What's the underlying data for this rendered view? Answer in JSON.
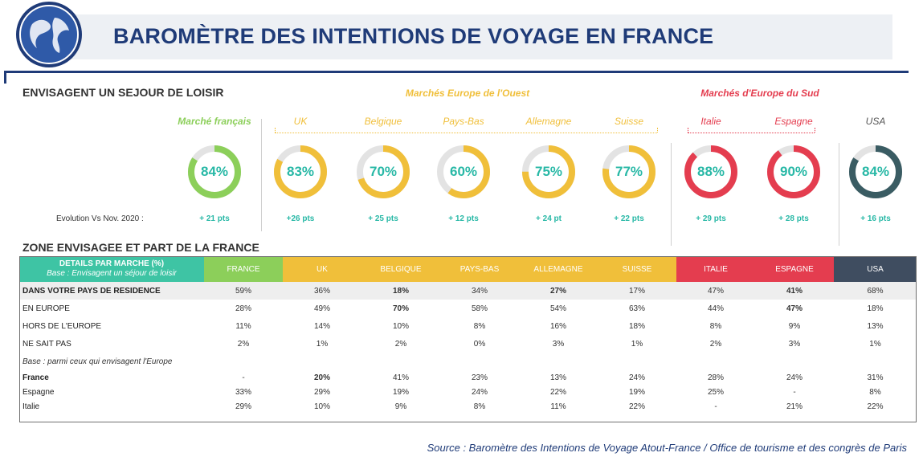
{
  "header": {
    "title": "BAROMÈTRE DES INTENTIONS DE VOYAGE EN FRANCE"
  },
  "section1_title": "ENVISAGENT UN SEJOUR DE LOISIR",
  "section2_title": "ZONE ENVISAGEE ET PART DE LA FRANCE",
  "groups": {
    "west": "Marchés Europe de l'Ouest",
    "south": "Marchés d'Europe du Sud"
  },
  "evolution_label": "Evolution Vs Nov. 2020 :",
  "colors": {
    "france": "#8ccf5a",
    "west": "#f0bf3a",
    "south": "#e43d4f",
    "usa": "#3a5c63",
    "header_navy": "#1f3b78",
    "accent_teal": "#28b8a6"
  },
  "chart_data": {
    "type": "donut",
    "markets": [
      {
        "name": "Marché français",
        "value": 84,
        "label": "84%",
        "evolution": "+ 21 pts",
        "color": "#8ccf5a",
        "label_color": "#8ccf5a"
      },
      {
        "name": "UK",
        "value": 83,
        "label": "83%",
        "evolution": "+26 pts",
        "color": "#f0bf3a",
        "label_color": "#f0bf3a"
      },
      {
        "name": "Belgique",
        "value": 70,
        "label": "70%",
        "evolution": "+ 25 pts",
        "color": "#f0bf3a",
        "label_color": "#f0bf3a"
      },
      {
        "name": "Pays-Bas",
        "value": 60,
        "label": "60%",
        "evolution": "+ 12 pts",
        "color": "#f0bf3a",
        "label_color": "#f0bf3a"
      },
      {
        "name": "Allemagne",
        "value": 75,
        "label": "75%",
        "evolution": "+ 24 pt",
        "color": "#f0bf3a",
        "label_color": "#f0bf3a"
      },
      {
        "name": "Suisse",
        "value": 77,
        "label": "77%",
        "evolution": "+ 22 pts",
        "color": "#f0bf3a",
        "label_color": "#f0bf3a"
      },
      {
        "name": "Italie",
        "value": 88,
        "label": "88%",
        "evolution": "+ 29 pts",
        "color": "#e43d4f",
        "label_color": "#e43d4f"
      },
      {
        "name": "Espagne",
        "value": 90,
        "label": "90%",
        "evolution": "+ 28 pts",
        "color": "#e43d4f",
        "label_color": "#e43d4f"
      },
      {
        "name": "USA",
        "value": 84,
        "label": "84%",
        "evolution": "+ 16 pts",
        "color": "#3a5c63",
        "label_color": "#555555"
      }
    ]
  },
  "table": {
    "header_title": "DETAILS PAR MARCHE (%)",
    "header_sub": "Base : Envisagent un séjour de loisir",
    "columns": [
      {
        "label": "FRANCE",
        "color": "#8ccf5a"
      },
      {
        "label": "UK",
        "color": "#f0bf3a"
      },
      {
        "label": "BELGIQUE",
        "color": "#f0bf3a"
      },
      {
        "label": "PAYS-BAS",
        "color": "#f0bf3a"
      },
      {
        "label": "ALLEMAGNE",
        "color": "#f0bf3a"
      },
      {
        "label": "SUISSE",
        "color": "#f0bf3a"
      },
      {
        "label": "ITALIE",
        "color": "#e43d4f"
      },
      {
        "label": "ESPAGNE",
        "color": "#e43d4f"
      },
      {
        "label": "USA",
        "color": "#3f4d60"
      }
    ],
    "rows": [
      {
        "label": "DANS VOTRE PAYS DE RESIDENCE",
        "bold": true,
        "shaded": true,
        "values": [
          "59%",
          "36%",
          "18%",
          "34%",
          "27%",
          "17%",
          "47%",
          "41%",
          "68%"
        ],
        "styles": [
          "",
          "",
          "neg",
          "",
          "neg",
          "",
          "",
          "neg",
          ""
        ]
      },
      {
        "label": "EN EUROPE",
        "bold": false,
        "shaded": false,
        "values": [
          "28%",
          "49%",
          "70%",
          "58%",
          "54%",
          "63%",
          "44%",
          "47%",
          "18%"
        ],
        "styles": [
          "",
          "",
          "pos",
          "",
          "",
          "",
          "",
          "pos",
          ""
        ]
      },
      {
        "label": "HORS DE L'EUROPE",
        "bold": false,
        "shaded": false,
        "values": [
          "11%",
          "14%",
          "10%",
          "8%",
          "16%",
          "18%",
          "8%",
          "9%",
          "13%"
        ],
        "styles": [
          "",
          "",
          "",
          "",
          "",
          "",
          "",
          "",
          ""
        ]
      },
      {
        "label": "NE SAIT PAS",
        "bold": false,
        "shaded": false,
        "values": [
          "2%",
          "1%",
          "2%",
          "0%",
          "3%",
          "1%",
          "2%",
          "3%",
          "1%"
        ],
        "styles": [
          "",
          "",
          "",
          "",
          "",
          "",
          "",
          "",
          ""
        ]
      }
    ],
    "base_note": "Base : parmi ceux qui envisagent l'Europe",
    "rows2": [
      {
        "label": "France",
        "bold": true,
        "values": [
          "-",
          "20%",
          "41%",
          "23%",
          "13%",
          "24%",
          "28%",
          "24%",
          "31%"
        ],
        "styles": [
          "",
          "pos",
          "",
          "",
          "",
          "",
          "",
          "",
          ""
        ]
      },
      {
        "label": "Espagne",
        "bold": false,
        "values": [
          "33%",
          "29%",
          "19%",
          "24%",
          "22%",
          "19%",
          "25%",
          "-",
          "8%"
        ],
        "styles": [
          "",
          "",
          "",
          "",
          "",
          "",
          "",
          "",
          ""
        ]
      },
      {
        "label": "Italie",
        "bold": false,
        "values": [
          "29%",
          "10%",
          "9%",
          "8%",
          "11%",
          "22%",
          "-",
          "21%",
          "22%"
        ],
        "styles": [
          "",
          "",
          "",
          "",
          "",
          "",
          "",
          "",
          ""
        ]
      }
    ]
  },
  "source": "Source : Baromètre des Intentions de Voyage Atout-France / Office de tourisme et des congrès de Paris"
}
